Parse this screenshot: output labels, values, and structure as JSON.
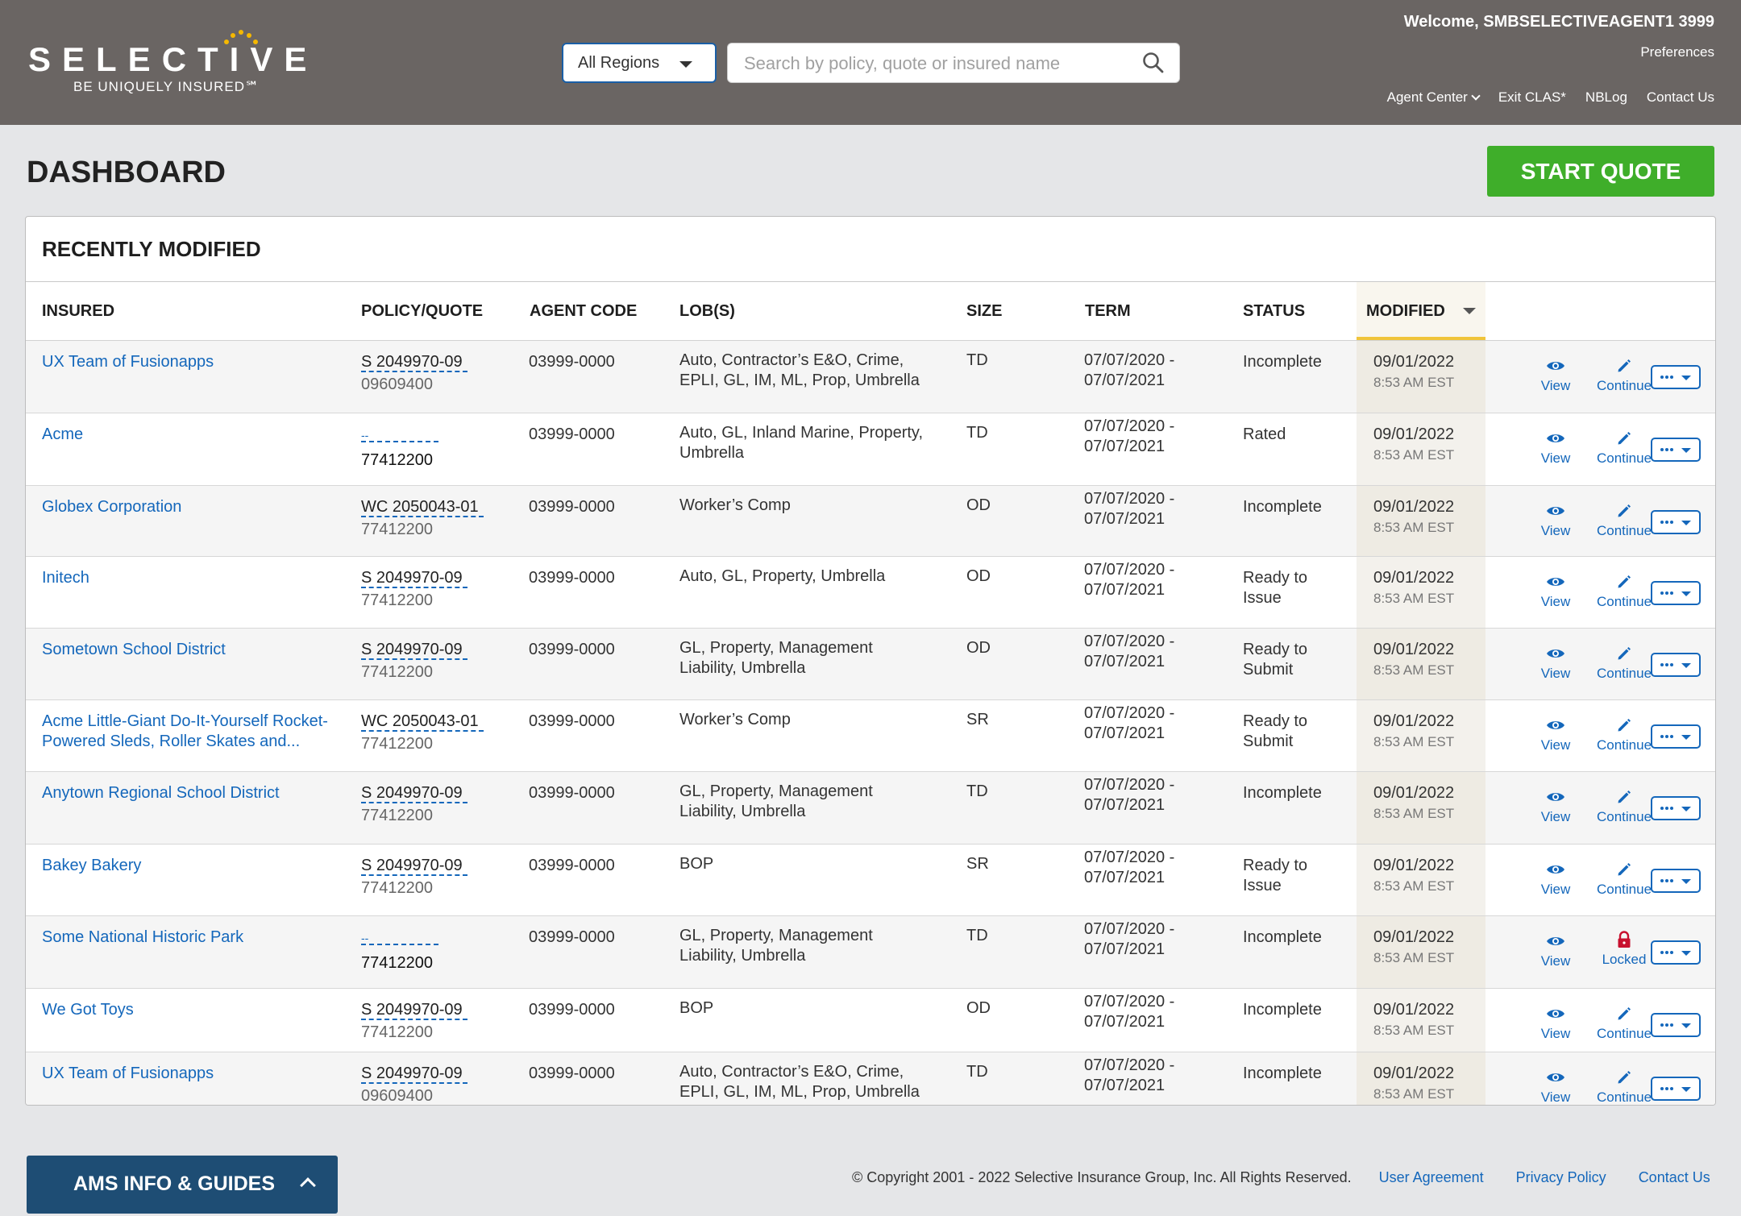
{
  "header": {
    "logo_word": "SELECTIVE",
    "logo_tag": "BE UNIQUELY INSURED℠",
    "region_value": "All Regions",
    "search_placeholder": "Search by policy, quote or insured name",
    "welcome": "Welcome, SMBSELECTIVEAGENT1 3999",
    "preferences": "Preferences",
    "nav": [
      "Agent Center",
      "Exit CLAS*",
      "NBLog",
      "Contact Us"
    ]
  },
  "page_title": "DASHBOARD",
  "start_quote": "START QUOTE",
  "panel_title": "RECENTLY MODIFIED",
  "columns": [
    "INSURED",
    "POLICY/QUOTE",
    "AGENT CODE",
    "LOB(S)",
    "SIZE",
    "TERM",
    "STATUS",
    "MODIFIED"
  ],
  "actions": {
    "view": "View",
    "continue": "Continue",
    "locked": "Locked"
  },
  "rows": [
    {
      "insured": "UX Team of Fusionapps",
      "policy": "S 2049970-09",
      "sub": "09609400",
      "agent": "03999-0000",
      "lob": "Auto, Contractor’s E&O, Crime, EPLI, GL, IM, ML, Prop, Umbrella",
      "size": "TD",
      "term": "07/07/2020 - 07/07/2021",
      "status": "Incomplete",
      "mod_date": "09/01/2022",
      "mod_time": "8:53 AM EST",
      "second": "Continue"
    },
    {
      "insured": "Acme",
      "policy": "--",
      "sub": "77412200",
      "agent": "03999-0000",
      "lob": "Auto, GL, Inland Marine, Property, Umbrella",
      "size": "TD",
      "term": "07/07/2020 - 07/07/2021",
      "status": "Rated",
      "mod_date": "09/01/2022",
      "mod_time": "8:53 AM EST",
      "second": "Continue"
    },
    {
      "insured": "Globex Corporation",
      "policy": "WC 2050043-01",
      "sub": "77412200",
      "agent": "03999-0000",
      "lob": "Worker’s Comp",
      "size": "OD",
      "term": "07/07/2020 - 07/07/2021",
      "status": "Incomplete",
      "mod_date": "09/01/2022",
      "mod_time": "8:53 AM EST",
      "second": "Continue"
    },
    {
      "insured": "Initech",
      "policy": "S 2049970-09",
      "sub": "77412200",
      "agent": "03999-0000",
      "lob": "Auto, GL, Property, Umbrella",
      "size": "OD",
      "term": "07/07/2020 - 07/07/2021",
      "status": "Ready to Issue",
      "mod_date": "09/01/2022",
      "mod_time": "8:53 AM EST",
      "second": "Continue"
    },
    {
      "insured": "Sometown School District",
      "policy": "S 2049970-09",
      "sub": "77412200",
      "agent": "03999-0000",
      "lob": "GL, Property, Management Liability, Umbrella",
      "size": "OD",
      "term": "07/07/2020 - 07/07/2021",
      "status": "Ready to Submit",
      "mod_date": "09/01/2022",
      "mod_time": "8:53 AM EST",
      "second": "Continue"
    },
    {
      "insured": "Acme Little-Giant Do-It-Yourself Rocket-Powered Sleds,  Roller Skates and...",
      "policy": "WC 2050043-01",
      "sub": "77412200",
      "agent": "03999-0000",
      "lob": "Worker’s Comp",
      "size": "SR",
      "term": "07/07/2020 - 07/07/2021",
      "status": "Ready to Submit",
      "mod_date": "09/01/2022",
      "mod_time": "8:53 AM EST",
      "second": "Continue"
    },
    {
      "insured": "Anytown Regional School District",
      "policy": "S 2049970-09",
      "sub": "77412200",
      "agent": "03999-0000",
      "lob": "GL, Property, Management Liability, Umbrella",
      "size": "TD",
      "term": "07/07/2020 - 07/07/2021",
      "status": "Incomplete",
      "mod_date": "09/01/2022",
      "mod_time": "8:53 AM EST",
      "second": "Continue"
    },
    {
      "insured": "Bakey Bakery",
      "policy": "S 2049970-09",
      "sub": "77412200",
      "agent": "03999-0000",
      "lob": "BOP",
      "size": "SR",
      "term": "07/07/2020 - 07/07/2021",
      "status": "Ready to Issue",
      "mod_date": "09/01/2022",
      "mod_time": "8:53 AM EST",
      "second": "Continue"
    },
    {
      "insured": "Some National Historic Park",
      "policy": "--",
      "sub": "77412200",
      "agent": "03999-0000",
      "lob": "GL, Property, Management Liability, Umbrella",
      "size": "TD",
      "term": "07/07/2020 - 07/07/2021",
      "status": "Incomplete",
      "mod_date": "09/01/2022",
      "mod_time": "8:53 AM EST",
      "second": "Locked"
    },
    {
      "insured": "We Got Toys",
      "policy": "S 2049970-09",
      "sub": "77412200",
      "agent": "03999-0000",
      "lob": "BOP",
      "size": "OD",
      "term": "07/07/2020 - 07/07/2021",
      "status": "Incomplete",
      "mod_date": "09/01/2022",
      "mod_time": "8:53 AM EST",
      "second": "Continue"
    },
    {
      "insured": "UX Team of Fusionapps",
      "policy": "S 2049970-09",
      "sub": "09609400",
      "agent": "03999-0000",
      "lob": "Auto, Contractor’s E&O, Crime, EPLI, GL, IM, ML, Prop, Umbrella",
      "size": "TD",
      "term": "07/07/2020 - 07/07/2021",
      "status": "Incomplete",
      "mod_date": "09/01/2022",
      "mod_time": "8:53 AM EST",
      "second": "Continue"
    }
  ],
  "ams_label": "AMS INFO & GUIDES",
  "footer": {
    "copyright": "© Copyright 2001 - 2022 Selective Insurance Group, Inc. All Rights Reserved.",
    "links": [
      "User Agreement",
      "Privacy Policy",
      "Contact Us"
    ]
  },
  "colors": {
    "header": "#6a6563",
    "accent_green": "#3fae2a",
    "link_blue": "#1467bb",
    "ams_blue": "#1e4d74",
    "sort_underline": "#f0c43a",
    "lock_red": "#c8102e"
  }
}
